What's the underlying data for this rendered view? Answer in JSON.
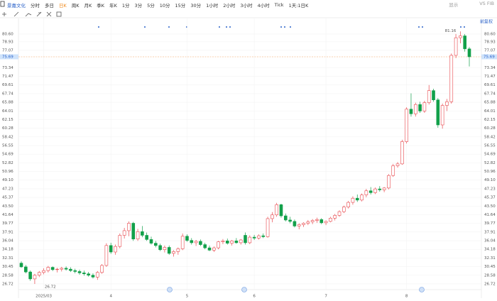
{
  "toolbar": {
    "stock": "景嘉文化",
    "periods": [
      "分时",
      "多日",
      "日K",
      "周K",
      "月K",
      "季K",
      "年K",
      "1分",
      "3分",
      "5分",
      "10分",
      "15分",
      "30分",
      "1小时",
      "2小时",
      "3小时",
      "4小时",
      "Tick",
      "1天:1日K"
    ],
    "active": 2,
    "display": "显示",
    "compare": "VS FIB"
  },
  "chart_data": {
    "type": "candlestick",
    "adjust": "前复权",
    "categories": [
      null,
      null,
      null,
      null,
      null,
      "2025/03",
      null,
      null,
      null,
      null,
      null,
      null,
      null,
      null,
      null,
      null,
      null,
      null,
      null,
      null,
      "4",
      null,
      null,
      null,
      null,
      null,
      null,
      null,
      null,
      null,
      null,
      null,
      null,
      null,
      null,
      null,
      null,
      "5",
      null,
      null,
      null,
      null,
      null,
      null,
      null,
      null,
      null,
      null,
      null,
      null,
      null,
      null,
      "6",
      null,
      null,
      null,
      null,
      null,
      null,
      null,
      null,
      null,
      null,
      null,
      null,
      null,
      null,
      null,
      "7",
      null,
      null,
      null,
      null,
      null,
      null,
      null,
      null,
      null,
      null,
      null,
      null,
      null,
      null,
      null,
      null,
      null,
      "8",
      null,
      null,
      null,
      null,
      null,
      null,
      null,
      null,
      null,
      null,
      null,
      null,
      null,
      null
    ],
    "open": [
      31.2,
      30.4,
      29.3,
      27.8,
      28.6,
      29.2,
      29.6,
      30.3,
      29.8,
      29.9,
      30.1,
      29.9,
      29.6,
      29.4,
      29.1,
      28.9,
      28.6,
      28.2,
      29.2,
      30.7,
      35.0,
      33.6,
      34.8,
      37.2,
      38.2,
      39.8,
      36.4,
      38.0,
      37.2,
      36.3,
      35.5,
      35.0,
      34.1,
      34.6,
      33.3,
      33.7,
      34.3,
      37.0,
      36.1,
      35.6,
      35.9,
      35.2,
      34.5,
      34.0,
      34.5,
      35.8,
      36.0,
      35.5,
      36.0,
      35.6,
      37.2,
      35.6,
      36.8,
      36.6,
      37.1,
      36.9,
      40.8,
      41.6,
      43.8,
      41.4,
      40.5,
      40.2,
      39.2,
      39.5,
      39.8,
      40.1,
      40.4,
      40.6,
      39.9,
      40.2,
      40.9,
      41.5,
      42.3,
      43.3,
      44.3,
      45.2,
      44.8,
      45.9,
      46.8,
      46.4,
      47.2,
      47.0,
      47.4,
      50.1,
      52.2,
      52.6,
      57.4,
      64.4,
      63.4,
      65.4,
      64.0,
      65.8,
      68.4,
      66.4,
      61.0,
      65.2,
      66.0,
      76.0,
      79.8,
      80.2,
      77.4
    ],
    "high": [
      31.6,
      30.8,
      29.6,
      28.9,
      29.5,
      30.1,
      30.6,
      30.5,
      30.2,
      30.4,
      30.5,
      30.3,
      30.0,
      29.8,
      29.6,
      29.3,
      29.0,
      29.5,
      31.0,
      35.5,
      35.6,
      35.2,
      37.6,
      38.8,
      40.2,
      40.1,
      38.6,
      39.2,
      37.8,
      36.9,
      36.0,
      35.4,
      35.0,
      35.0,
      34.0,
      34.6,
      37.6,
      37.4,
      36.6,
      36.2,
      36.3,
      35.6,
      35.0,
      34.8,
      36.0,
      36.4,
      36.5,
      36.2,
      36.6,
      36.4,
      37.8,
      37.2,
      37.3,
      37.4,
      37.6,
      41.2,
      42.2,
      44.2,
      44.0,
      41.9,
      41.2,
      40.6,
      39.8,
      40.0,
      40.5,
      40.7,
      41.0,
      40.9,
      40.4,
      41.2,
      41.8,
      42.6,
      43.6,
      44.6,
      45.6,
      46.0,
      46.2,
      47.2,
      47.6,
      47.5,
      47.8,
      47.6,
      50.4,
      52.6,
      53.0,
      57.8,
      64.8,
      67.8,
      65.8,
      66.0,
      66.2,
      69.6,
      68.8,
      66.8,
      65.6,
      66.6,
      76.4,
      80.6,
      81.16,
      80.6,
      77.8
    ],
    "low": [
      30.2,
      29.0,
      27.4,
      26.72,
      28.2,
      28.8,
      29.2,
      29.5,
      29.2,
      29.4,
      29.6,
      29.3,
      29.0,
      28.7,
      28.5,
      28.3,
      27.9,
      27.6,
      28.9,
      30.4,
      33.2,
      33.0,
      34.4,
      36.5,
      37.0,
      36.0,
      36.0,
      36.8,
      36.0,
      35.2,
      34.6,
      33.8,
      33.5,
      33.0,
      32.6,
      33.0,
      34.0,
      35.8,
      35.2,
      34.9,
      34.9,
      34.2,
      33.8,
      33.6,
      34.2,
      35.3,
      35.2,
      35.0,
      35.4,
      35.2,
      35.2,
      35.3,
      36.2,
      36.3,
      36.6,
      36.7,
      40.0,
      41.2,
      41.0,
      40.2,
      39.8,
      38.9,
      38.5,
      39.0,
      39.4,
      39.6,
      39.9,
      39.6,
      39.4,
      40.0,
      40.4,
      41.2,
      42.0,
      43.0,
      43.8,
      44.4,
      44.5,
      45.4,
      46.0,
      46.1,
      46.6,
      46.5,
      47.1,
      49.8,
      51.8,
      52.4,
      57.0,
      62.8,
      62.8,
      63.6,
      63.6,
      65.4,
      66.0,
      60.4,
      60.2,
      64.0,
      65.6,
      75.4,
      78.6,
      76.8,
      73.6
    ],
    "close": [
      30.4,
      29.3,
      27.8,
      28.6,
      29.2,
      29.6,
      30.3,
      29.8,
      29.9,
      30.1,
      29.9,
      29.6,
      29.4,
      29.1,
      28.9,
      28.6,
      28.2,
      29.2,
      30.7,
      35.0,
      33.6,
      34.8,
      37.2,
      38.2,
      39.8,
      36.4,
      38.0,
      37.2,
      36.3,
      35.5,
      35.0,
      34.1,
      34.6,
      33.3,
      33.7,
      34.3,
      37.0,
      36.1,
      35.6,
      35.9,
      35.2,
      34.5,
      34.0,
      34.5,
      35.8,
      36.0,
      35.5,
      36.0,
      35.6,
      36.2,
      35.6,
      36.8,
      36.6,
      37.1,
      36.9,
      40.8,
      41.6,
      43.8,
      41.4,
      40.5,
      40.2,
      39.2,
      39.5,
      39.8,
      40.1,
      40.4,
      40.6,
      39.9,
      40.2,
      40.9,
      41.5,
      42.3,
      43.3,
      44.3,
      45.2,
      44.8,
      45.9,
      46.8,
      46.4,
      47.2,
      47.0,
      47.4,
      50.1,
      52.2,
      52.6,
      57.4,
      64.4,
      63.4,
      65.4,
      64.0,
      65.8,
      68.4,
      66.4,
      61.0,
      65.2,
      66.0,
      76.0,
      79.8,
      80.2,
      77.4,
      75.69
    ],
    "up_color": "#e8474c",
    "down_color": "#12a04a",
    "last_price": 75.69,
    "ylim": [
      26.1,
      81.2
    ],
    "yticks": [
      {
        "value": 80.6,
        "label": "80.60"
      },
      78.93,
      77.07,
      73.34,
      71.47,
      69.61,
      67.74,
      65.88,
      64.01,
      62.15,
      60.28,
      58.42,
      56.55,
      54.69,
      52.82,
      50.96,
      {
        "value": 49.1,
        "label": "49.10"
      },
      47.23,
      45.37,
      {
        "value": 43.5,
        "label": "43.50"
      },
      41.64,
      39.77,
      37.91,
      36.04,
      34.18,
      32.31,
      30.45,
      28.58,
      26.72
    ],
    "grid": true
  }
}
